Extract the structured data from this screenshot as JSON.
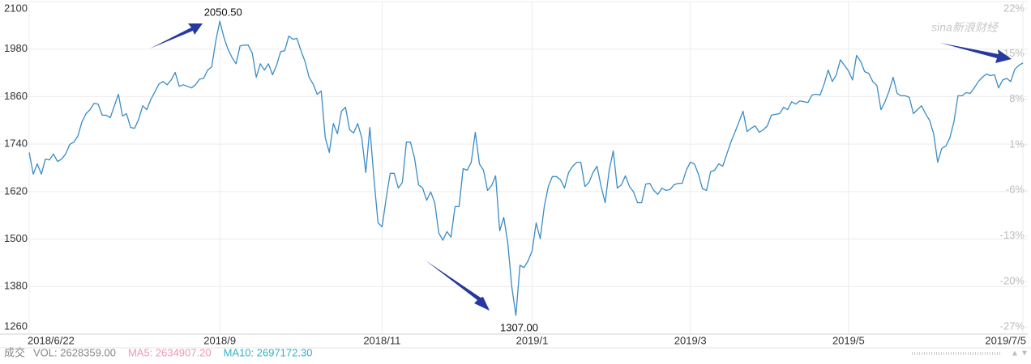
{
  "chart_data": {
    "type": "line",
    "watermark": "sina新浪财经",
    "categories": [
      "2018/6/22",
      null,
      null,
      null,
      null,
      null,
      null,
      null,
      null,
      null,
      null,
      null,
      null,
      null,
      null,
      null,
      null,
      null,
      null,
      null,
      null,
      null,
      null,
      null,
      null,
      null,
      null,
      null,
      null,
      null,
      null,
      null,
      null,
      null,
      null,
      null,
      null,
      null,
      null,
      null,
      null,
      null,
      null,
      null,
      null,
      null,
      null,
      "2018/9",
      null,
      null,
      null,
      null,
      null,
      null,
      null,
      null,
      null,
      null,
      null,
      null,
      null,
      null,
      null,
      null,
      null,
      null,
      null,
      null,
      null,
      null,
      null,
      null,
      null,
      null,
      null,
      null,
      null,
      null,
      null,
      null,
      null,
      null,
      null,
      null,
      null,
      null,
      null,
      "2018/11",
      null,
      null,
      null,
      null,
      null,
      null,
      null,
      null,
      null,
      null,
      null,
      null,
      null,
      null,
      null,
      null,
      null,
      null,
      null,
      null,
      null,
      null,
      null,
      null,
      null,
      null,
      null,
      null,
      null,
      null,
      null,
      null,
      null,
      null,
      null,
      null,
      "2019/1",
      null,
      null,
      null,
      null,
      null,
      null,
      null,
      null,
      null,
      null,
      null,
      null,
      null,
      null,
      null,
      null,
      null,
      null,
      null,
      null,
      null,
      null,
      null,
      null,
      null,
      null,
      null,
      null,
      null,
      null,
      null,
      null,
      null,
      null,
      null,
      null,
      null,
      null,
      "2019/3",
      null,
      null,
      null,
      null,
      null,
      null,
      null,
      null,
      null,
      null,
      null,
      null,
      null,
      null,
      null,
      null,
      null,
      null,
      null,
      null,
      null,
      null,
      null,
      null,
      null,
      null,
      null,
      null,
      null,
      null,
      null,
      null,
      null,
      null,
      null,
      null,
      null,
      null,
      "2019/5",
      null,
      null,
      null,
      null,
      null,
      null,
      null,
      null,
      null,
      null,
      null,
      null,
      null,
      null,
      null,
      null,
      null,
      null,
      null,
      null,
      null,
      null,
      null,
      null,
      null,
      null,
      null,
      null,
      null,
      null,
      null,
      null,
      null,
      null,
      null,
      null,
      null,
      null,
      null,
      null,
      null,
      null,
      "2019/7/5"
    ],
    "series": [
      {
        "color": "#3a8cc6",
        "values": [
          1719,
          1664,
          1690,
          1664,
          1702,
          1700,
          1715,
          1696,
          1702,
          1715,
          1739,
          1745,
          1760,
          1796,
          1817,
          1827,
          1843,
          1841,
          1813,
          1813,
          1807,
          1837,
          1866,
          1811,
          1817,
          1782,
          1780,
          1803,
          1837,
          1827,
          1853,
          1872,
          1892,
          1898,
          1890,
          1902,
          1921,
          1886,
          1890,
          1886,
          1882,
          1890,
          1904,
          1906,
          1927,
          1935,
          2000,
          2050.5,
          2010,
          1980,
          1959,
          1943,
          1988,
          1990,
          1990,
          1970,
          1909,
          1943,
          1927,
          1943,
          1915,
          1939,
          1974,
          1976,
          2013,
          2005,
          2007,
          1976,
          1949,
          1909,
          1892,
          1866,
          1874,
          1756,
          1719,
          1792,
          1766,
          1823,
          1833,
          1776,
          1768,
          1792,
          1756,
          1668,
          1782,
          1654,
          1541,
          1531,
          1602,
          1666,
          1666,
          1629,
          1643,
          1745,
          1745,
          1705,
          1637,
          1629,
          1598,
          1619,
          1592,
          1515,
          1497,
          1519,
          1505,
          1582,
          1582,
          1678,
          1674,
          1694,
          1770,
          1690,
          1674,
          1623,
          1635,
          1660,
          1521,
          1555,
          1490,
          1378,
          1307,
          1434,
          1428,
          1445,
          1470,
          1541,
          1501,
          1582,
          1633,
          1658,
          1658,
          1650,
          1629,
          1668,
          1684,
          1694,
          1694,
          1633,
          1643,
          1668,
          1684,
          1633,
          1592,
          1674,
          1723,
          1629,
          1637,
          1660,
          1633,
          1619,
          1592,
          1592,
          1639,
          1641,
          1623,
          1613,
          1629,
          1623,
          1625,
          1637,
          1641,
          1641,
          1674,
          1694,
          1690,
          1664,
          1627,
          1623,
          1670,
          1674,
          1690,
          1684,
          1715,
          1745,
          1770,
          1796,
          1823,
          1772,
          1780,
          1786,
          1770,
          1776,
          1786,
          1813,
          1815,
          1817,
          1833,
          1827,
          1847,
          1841,
          1849,
          1847,
          1845,
          1864,
          1866,
          1864,
          1892,
          1927,
          1898,
          1915,
          1953,
          1939,
          1925,
          1902,
          1964,
          1949,
          1923,
          1919,
          1898,
          1888,
          1827,
          1847,
          1874,
          1909,
          1868,
          1862,
          1862,
          1858,
          1817,
          1827,
          1837,
          1817,
          1800,
          1766,
          1694,
          1729,
          1735,
          1756,
          1796,
          1862,
          1862,
          1870,
          1868,
          1882,
          1898,
          1909,
          1917,
          1913,
          1915,
          1882,
          1902,
          1906,
          1898,
          1929,
          1939,
          1945
        ],
        "value_labels": [
          null,
          null,
          null,
          null,
          null,
          null,
          null,
          null,
          null,
          null,
          null,
          null,
          null,
          null,
          null,
          null,
          null,
          null,
          null,
          null,
          null,
          null,
          null,
          null,
          null,
          null,
          null,
          null,
          null,
          null,
          null,
          null,
          null,
          null,
          null,
          null,
          null,
          null,
          null,
          null,
          null,
          null,
          null,
          null,
          null,
          null,
          null,
          "2050.50",
          null,
          null,
          null,
          null,
          null,
          null,
          null,
          null,
          null,
          null,
          null,
          null,
          null,
          null,
          null,
          null,
          null,
          null,
          null,
          null,
          null,
          null,
          null,
          null,
          null,
          null,
          null,
          null,
          null,
          null,
          null,
          null,
          null,
          null,
          null,
          null,
          null,
          null,
          null,
          null,
          null,
          null,
          null,
          null,
          null,
          null,
          null,
          null,
          null,
          null,
          null,
          null,
          null,
          null,
          null,
          null,
          null,
          null,
          null,
          null,
          null,
          null,
          null,
          null,
          null,
          null,
          null,
          null,
          null,
          null,
          null,
          null,
          "1307.00",
          null,
          null,
          null,
          null,
          null,
          null,
          null,
          null,
          null,
          null,
          null,
          null,
          null,
          null,
          null,
          null,
          null,
          null,
          null,
          null,
          null,
          null,
          null,
          null,
          null,
          null,
          null,
          null,
          null,
          null,
          null,
          null,
          null,
          null,
          null,
          null,
          null,
          null,
          null,
          null,
          null,
          null,
          null,
          null,
          null,
          null,
          null,
          null,
          null,
          null,
          null,
          null,
          null,
          null,
          null,
          null,
          null,
          null,
          null,
          null,
          null,
          null,
          null,
          null,
          null,
          null,
          null,
          null,
          null,
          null,
          null,
          null,
          null,
          null,
          null,
          null,
          null,
          null,
          null,
          null,
          null,
          null,
          null,
          null,
          null,
          null,
          null,
          null,
          null,
          null,
          null,
          null,
          null,
          null,
          null,
          null,
          null,
          null,
          null,
          null,
          null,
          null,
          null,
          null,
          null,
          null,
          null,
          null,
          null,
          null,
          null,
          null,
          null,
          null,
          null,
          null,
          null,
          null,
          null,
          null,
          null,
          null,
          null,
          null,
          null
        ]
      }
    ],
    "ylim": [
      1260,
      2100
    ],
    "yticks": [
      1260,
      1380,
      1500,
      1620,
      1740,
      1860,
      1980,
      2100
    ],
    "y2lim": [
      -28.1,
      23.0
    ],
    "y2ticks": [
      {
        "value": -27,
        "label": "-27%"
      },
      {
        "value": -20,
        "label": "-20%"
      },
      {
        "value": -13,
        "label": "-13%"
      },
      {
        "value": -6,
        "label": "-6%"
      },
      {
        "value": 1,
        "label": "1%"
      },
      {
        "value": 8,
        "label": "8%"
      },
      {
        "value": 15,
        "label": "15%"
      },
      {
        "value": 22,
        "label": "22%"
      }
    ],
    "grid": true,
    "volume_bar": {
      "label": "成交",
      "items": [
        {
          "text": "VOL: 2628359.00",
          "color": "#888888"
        },
        {
          "text": "MA5: 2634907.20",
          "color": "#f097b0"
        },
        {
          "text": "MA10: 2697172.30",
          "color": "#2fb3c8"
        }
      ]
    }
  }
}
